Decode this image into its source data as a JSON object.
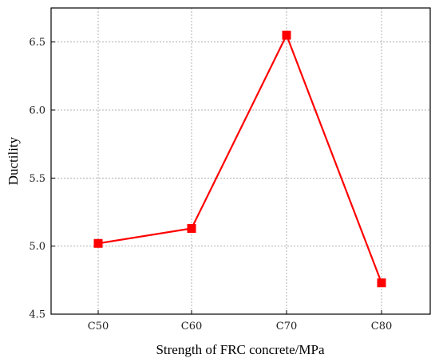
{
  "chart_data": {
    "type": "line",
    "xlabel": "Strength of FRC concrete/MPa",
    "ylabel": "Ductility",
    "categories": [
      "C50",
      "C60",
      "C70",
      "C80"
    ],
    "series": [
      {
        "values": [
          5.02,
          5.13,
          6.55,
          4.73
        ],
        "color": "#ff0000",
        "marker": "square"
      }
    ],
    "ylim": [
      4.5,
      6.75
    ],
    "yticks": [
      4.5,
      5.0,
      5.5,
      6.0,
      6.5
    ],
    "ytick_labels": [
      "4.5",
      "5.0",
      "5.5",
      "6.0",
      "6.5"
    ],
    "grid": true,
    "grid_style": "dotted",
    "axis_color": "#000000",
    "grid_color": "#b0b0b0"
  }
}
